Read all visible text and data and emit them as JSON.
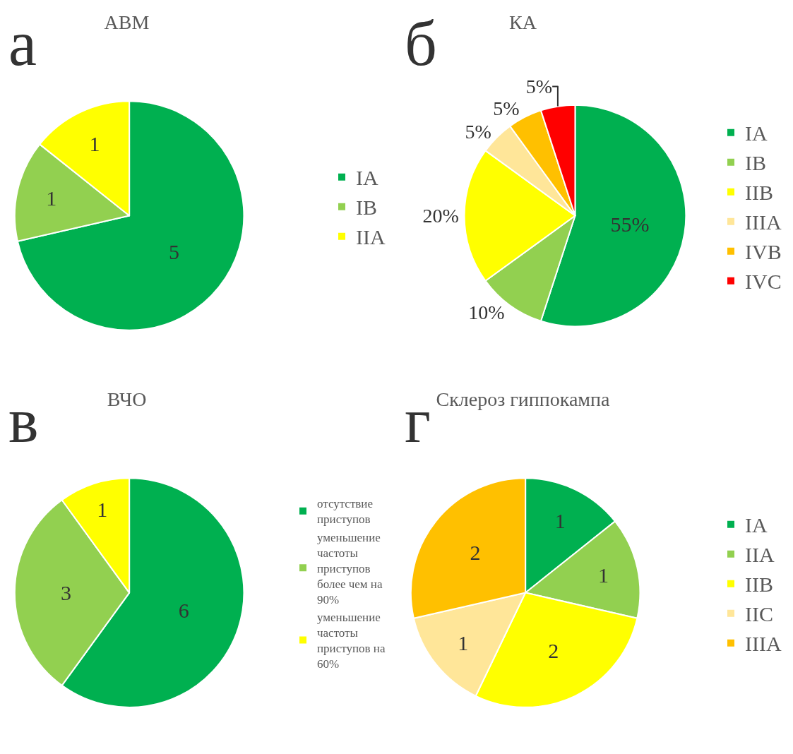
{
  "chart_data": [
    {
      "type": "pie",
      "title": "АВМ",
      "annotations": [
        "а"
      ],
      "categories": [
        "IA",
        "IB",
        "IIA"
      ],
      "values": [
        5,
        1,
        1
      ],
      "colors": [
        "#00b050",
        "#92d050",
        "#ffff00"
      ],
      "data_labels": true,
      "legend": "right"
    },
    {
      "type": "pie",
      "title": "КА",
      "annotations": [
        "б"
      ],
      "categories": [
        "IA",
        "IB",
        "IIB",
        "IIIA",
        "IVB",
        "IVC"
      ],
      "values": [
        55,
        10,
        20,
        5,
        5,
        5
      ],
      "value_labels": [
        "55%",
        "10%",
        "20%",
        "5%",
        "5%",
        "5%"
      ],
      "colors": [
        "#00b050",
        "#92d050",
        "#ffff00",
        "#ffe699",
        "#ffc000",
        "#ff0000"
      ],
      "legend": "right"
    },
    {
      "type": "pie",
      "title": "ВЧО",
      "annotations": [
        "в"
      ],
      "categories": [
        "отсутствие приступов",
        "уменьшение частоты приступов более чем на 90%",
        "уменьшение частоты приступов на 60%"
      ],
      "values": [
        6,
        3,
        1
      ],
      "colors": [
        "#00b050",
        "#92d050",
        "#ffff00"
      ],
      "data_labels": true,
      "legend": "right"
    },
    {
      "type": "pie",
      "title": "Склероз гиппокампа",
      "annotations": [
        "г"
      ],
      "categories": [
        "IA",
        "IIA",
        "IIB",
        "IIC",
        "IIIA"
      ],
      "values": [
        1,
        1,
        2,
        1,
        2
      ],
      "colors": [
        "#00b050",
        "#92d050",
        "#ffff00",
        "#ffe699",
        "#ffc000"
      ],
      "data_labels": true,
      "legend": "right"
    }
  ]
}
